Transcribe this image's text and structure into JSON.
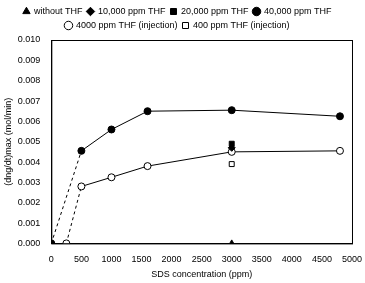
{
  "chart_data": {
    "type": "scatter",
    "x_label": "SDS concentration (ppm)",
    "y_label": "(dng/dt)max (mol/min)",
    "xlim": [
      0,
      5000
    ],
    "xticks": [
      0,
      500,
      1000,
      1500,
      2000,
      2500,
      3000,
      3500,
      4000,
      4500,
      5000
    ],
    "ylim": [
      0,
      0.01
    ],
    "yticks": [
      {
        "value": 0,
        "label": "0.000"
      },
      {
        "value": 0.001,
        "label": "0.001"
      },
      {
        "value": 0.002,
        "label": "0.002"
      },
      {
        "value": 0.003,
        "label": "0.003"
      },
      {
        "value": 0.004,
        "label": "0.004"
      },
      {
        "value": 0.005,
        "label": "0.005"
      },
      {
        "value": 0.006,
        "label": "0.006"
      },
      {
        "value": 0.007,
        "label": "0.007"
      },
      {
        "value": 0.008,
        "label": "0.008"
      },
      {
        "value": 0.009,
        "label": "0.009"
      },
      {
        "value": 0.01,
        "label": "0.010"
      }
    ],
    "grid": false,
    "legend": "top",
    "series": [
      {
        "name": "without THF",
        "color": "#000000",
        "marker": "triangle",
        "line_style": "none",
        "x": [
          3000
        ],
        "values": [
          0
        ]
      },
      {
        "name": "10,000 ppm THF",
        "color": "#000000",
        "marker": "diamond",
        "line_style": "none",
        "x": [
          3000
        ],
        "values": [
          0.0047
        ]
      },
      {
        "name": "20,000 ppm THF",
        "color": "#000000",
        "marker": "square",
        "line_style": "none",
        "x": [
          3000
        ],
        "values": [
          0.0049
        ]
      },
      {
        "name": "40,000 ppm THF",
        "color": "#000000",
        "marker": "circle",
        "line_style": "solid",
        "x": [
          0,
          500,
          1000,
          1600,
          3000,
          4800
        ],
        "values": [
          0,
          0.00455,
          0.0056,
          0.0065,
          0.00655,
          0.00625
        ]
      },
      {
        "name": "4000 ppm THF (injection)",
        "color": "#000000",
        "marker": "open-circle",
        "line_style": "solid",
        "x": [
          250,
          500,
          1000,
          1600,
          3000,
          4800
        ],
        "values": [
          0,
          0.0028,
          0.00325,
          0.0038,
          0.0045,
          0.00455
        ]
      },
      {
        "name": "400 ppm THF (injection)",
        "color": "#000000",
        "marker": "open-square",
        "line_style": "none",
        "x": [
          3000
        ],
        "values": [
          0.0039
        ]
      }
    ]
  }
}
